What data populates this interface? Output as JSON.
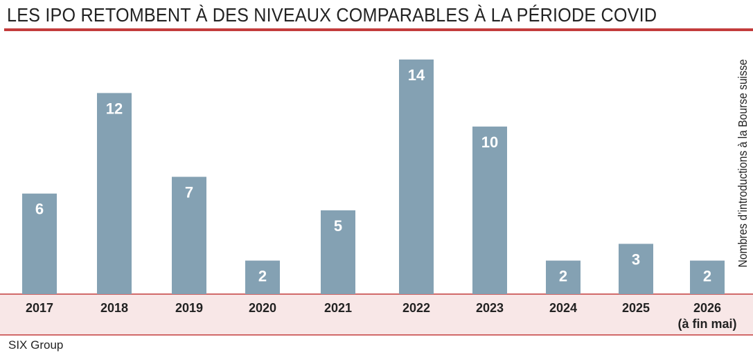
{
  "chart_data": {
    "type": "bar",
    "title": "LES IPO RETOMBENT À DES NIVEAUX COMPARABLES À LA PÉRIODE COVID",
    "categories": [
      "2017",
      "2018",
      "2019",
      "2020",
      "2021",
      "2022",
      "2023",
      "2024",
      "2025",
      "2026"
    ],
    "category_sublabels": [
      "",
      "",
      "",
      "",
      "",
      "",
      "",
      "",
      "",
      "(à fin mai)"
    ],
    "values": [
      6,
      12,
      7,
      2,
      5,
      14,
      10,
      2,
      3,
      2
    ],
    "ylabel": "Nombres d’introductions à la Bourse suisse",
    "ylim": [
      0,
      14
    ],
    "grid": false,
    "legend": "none",
    "data_labels": true
  },
  "source": "SIX Group",
  "colors": {
    "bar": "#84a1b3",
    "title_rule": "#c33c3c",
    "axis_band": "#f8e7e7",
    "axis_rule": "#c33c3c",
    "text": "#222222",
    "bar_label": "#ffffff"
  }
}
